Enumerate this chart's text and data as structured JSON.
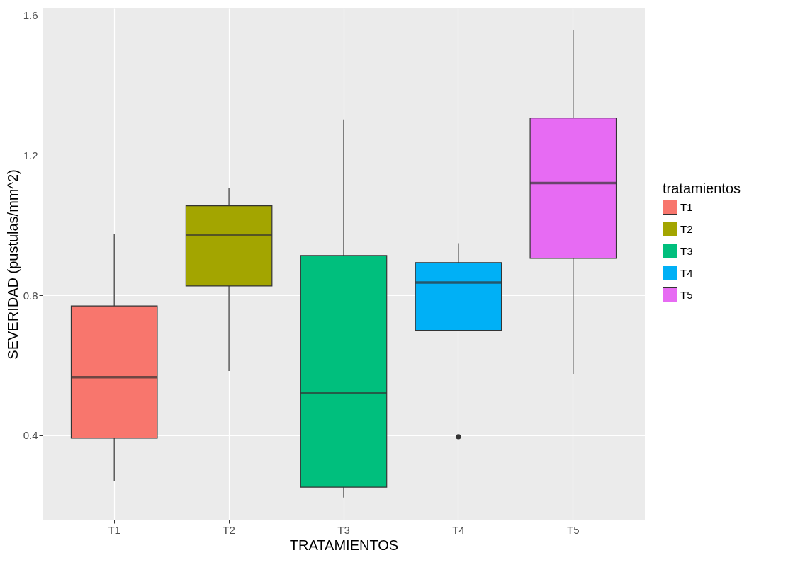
{
  "chart_data": {
    "type": "box",
    "xlabel": "TRATAMIENTOS",
    "ylabel": "SEVERIDAD (pustulas/mm^2)",
    "legend_title": "tratamientos",
    "legend": "right",
    "grid": true,
    "categories": [
      "T1",
      "T2",
      "T3",
      "T4",
      "T5"
    ],
    "series": [
      {
        "name": "T1",
        "color": "#f8766d",
        "boxes": [
          {
            "low": 0.27,
            "q1": 0.392,
            "median": 0.566,
            "q3": 0.77,
            "high": 0.975
          },
          null,
          null,
          null,
          null
        ]
      },
      {
        "name": "T2",
        "color": "#a3a500",
        "boxes": [
          null,
          {
            "low": 0.584,
            "q1": 0.827,
            "median": 0.973,
            "q3": 1.056,
            "high": 1.106
          },
          null,
          null,
          null
        ]
      },
      {
        "name": "T3",
        "color": "#00bf7d",
        "boxes": [
          null,
          null,
          {
            "low": 0.222,
            "q1": 0.252,
            "median": 0.521,
            "q3": 0.914,
            "high": 1.303
          },
          null,
          null
        ]
      },
      {
        "name": "T4",
        "color": "#00b0f6",
        "boxes": [
          null,
          null,
          null,
          {
            "low": 0.7,
            "q1": 0.7,
            "median": 0.837,
            "q3": 0.894,
            "high": 0.949,
            "outliers": [
              0.396
            ]
          },
          null
        ]
      },
      {
        "name": "T5",
        "color": "#e76bf3",
        "boxes": [
          null,
          null,
          null,
          null,
          {
            "low": 0.576,
            "q1": 0.906,
            "median": 1.121,
            "q3": 1.307,
            "high": 1.558
          }
        ]
      }
    ],
    "ylim": [
      0.159,
      1.62
    ],
    "yticks": [
      0.4,
      0.8,
      1.2,
      1.6
    ]
  }
}
